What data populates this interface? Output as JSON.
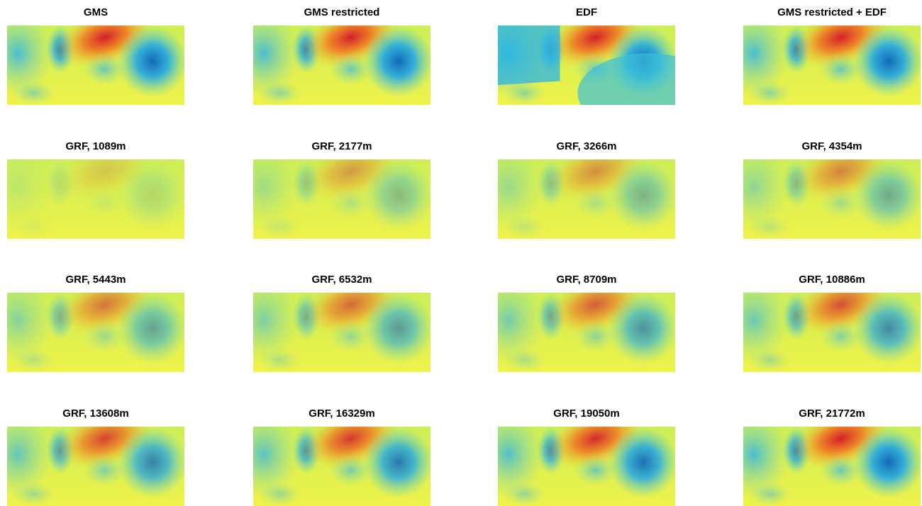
{
  "panels": [
    {
      "title": "GMS"
    },
    {
      "title": "GMS restricted"
    },
    {
      "title": "EDF"
    },
    {
      "title": "GMS restricted + EDF"
    },
    {
      "title": "GRF, 1089m"
    },
    {
      "title": "GRF, 2177m"
    },
    {
      "title": "GRF, 3266m"
    },
    {
      "title": "GRF, 4354m"
    },
    {
      "title": "GRF, 5443m"
    },
    {
      "title": "GRF, 6532m"
    },
    {
      "title": "GRF, 8709m"
    },
    {
      "title": "GRF, 10886m"
    },
    {
      "title": "GRF, 13608m"
    },
    {
      "title": "GRF, 16329m"
    },
    {
      "title": "GRF, 19050m"
    },
    {
      "title": "GRF, 21772m"
    }
  ]
}
